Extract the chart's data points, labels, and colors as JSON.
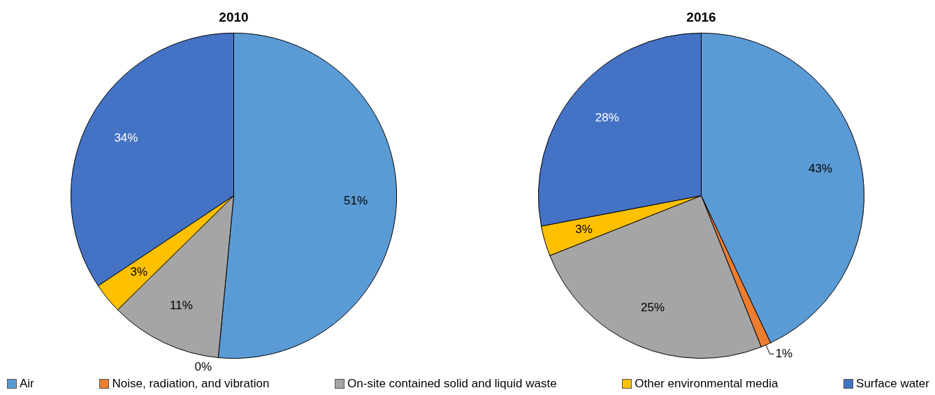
{
  "chart_data": [
    {
      "type": "pie",
      "title": "2010",
      "categories": [
        "Air",
        "Noise, radiation, and vibration",
        "On-site contained solid and liquid waste",
        "Other environmental media",
        "Surface water"
      ],
      "values": [
        51,
        0,
        11,
        3,
        34
      ],
      "value_labels": [
        "51%",
        "0%",
        "11%",
        "3%",
        "34%"
      ],
      "colors": [
        "#5b9bd5",
        "#ed7d31",
        "#a5a5a5",
        "#ffc000",
        "#4472c4"
      ],
      "legend": "bottom"
    },
    {
      "type": "pie",
      "title": "2016",
      "categories": [
        null,
        null,
        null,
        null,
        null
      ],
      "values": [
        43,
        1,
        25,
        3,
        28
      ],
      "value_labels": [
        "43%",
        "1%",
        "25%",
        "3%",
        "28%"
      ],
      "colors": [
        "#5b9bd5",
        "#ed7d31",
        "#a5a5a5",
        "#ffc000",
        "#4472c4"
      ]
    }
  ]
}
